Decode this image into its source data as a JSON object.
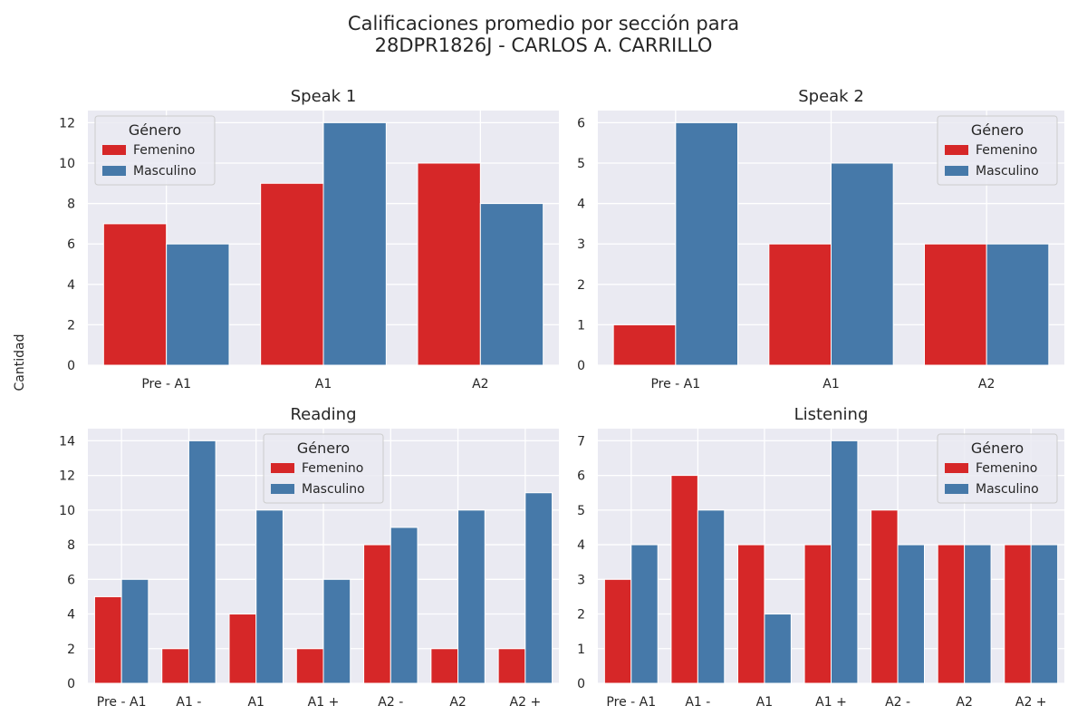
{
  "figure": {
    "title_line1": "Calificaciones promedio por sección para",
    "title_line2": "28DPR1826J - CARLOS A. CARRILLO",
    "ylabel": "Cantidad"
  },
  "colors": {
    "Femenino": "#d62728",
    "Masculino": "#4679a9",
    "plot_bg": "#eaeaf2",
    "grid": "#ffffff"
  },
  "chart_data": [
    {
      "type": "bar",
      "title": "Speak 1",
      "categories": [
        "Pre - A1",
        "A1",
        "A2"
      ],
      "series": [
        {
          "name": "Femenino",
          "values": [
            7,
            9,
            10
          ]
        },
        {
          "name": "Masculino",
          "values": [
            6,
            12,
            8
          ]
        }
      ],
      "ylim": [
        0,
        12.6
      ],
      "yticks": [
        0,
        2,
        4,
        6,
        8,
        10,
        12
      ],
      "legend_title": "Género",
      "legend": "upper-left",
      "grid": true
    },
    {
      "type": "bar",
      "title": "Speak 2",
      "categories": [
        "Pre - A1",
        "A1",
        "A2"
      ],
      "series": [
        {
          "name": "Femenino",
          "values": [
            1,
            3,
            3
          ]
        },
        {
          "name": "Masculino",
          "values": [
            6,
            5,
            3
          ]
        }
      ],
      "ylim": [
        0,
        6.3
      ],
      "yticks": [
        0,
        1,
        2,
        3,
        4,
        5,
        6
      ],
      "legend_title": "Género",
      "legend": "upper-right",
      "grid": true
    },
    {
      "type": "bar",
      "title": "Reading",
      "categories": [
        "Pre - A1",
        "A1 -",
        "A1",
        "A1 +",
        "A2 -",
        "A2",
        "A2 +"
      ],
      "series": [
        {
          "name": "Femenino",
          "values": [
            5,
            2,
            4,
            2,
            8,
            2,
            2
          ]
        },
        {
          "name": "Masculino",
          "values": [
            6,
            14,
            10,
            6,
            9,
            10,
            11
          ]
        }
      ],
      "ylim": [
        0,
        14.7
      ],
      "yticks": [
        0,
        2,
        4,
        6,
        8,
        10,
        12,
        14
      ],
      "legend_title": "Género",
      "legend": "upper-center",
      "grid": true
    },
    {
      "type": "bar",
      "title": "Listening",
      "categories": [
        "Pre - A1",
        "A1 -",
        "A1",
        "A1 +",
        "A2 -",
        "A2",
        "A2 +"
      ],
      "series": [
        {
          "name": "Femenino",
          "values": [
            3,
            6,
            4,
            4,
            5,
            4,
            4
          ]
        },
        {
          "name": "Masculino",
          "values": [
            4,
            5,
            2,
            7,
            4,
            4,
            4
          ]
        }
      ],
      "ylim": [
        0,
        7.35
      ],
      "yticks": [
        0,
        1,
        2,
        3,
        4,
        5,
        6,
        7
      ],
      "legend_title": "Género",
      "legend": "upper-right",
      "grid": true
    }
  ]
}
